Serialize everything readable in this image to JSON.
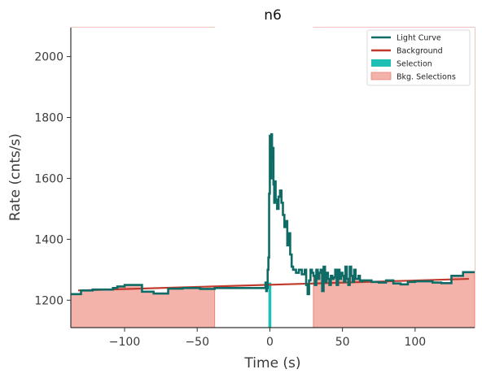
{
  "chart_data": {
    "type": "line",
    "title": "n6",
    "xlabel": "Time (s)",
    "ylabel": "Rate (cnts/s)",
    "xlim": [
      -137,
      141
    ],
    "ylim": [
      1110,
      2095
    ],
    "xticks": [
      -100,
      -50,
      0,
      50,
      100
    ],
    "xtick_labels": [
      "−100",
      "−50",
      "0",
      "50",
      "100"
    ],
    "yticks": [
      1200,
      1400,
      1600,
      1800,
      2000
    ],
    "ytick_labels": [
      "1200",
      "1400",
      "1600",
      "1800",
      "2000"
    ],
    "grid": false,
    "legend_position": "top-right",
    "colors": {
      "light_curve": "#0e6b65",
      "background": "#c0392b",
      "selection": "#1fbfb5",
      "bkg_selection_fill": "#f4b3aa",
      "bkg_selection_edge": "#e8857a",
      "axis": "#333333"
    },
    "legend": [
      {
        "label": "Light Curve",
        "kind": "line",
        "color": "#0e6b65"
      },
      {
        "label": "Background",
        "kind": "line",
        "color": "#c0392b"
      },
      {
        "label": "Selection",
        "kind": "patch",
        "color": "#1fbfb5"
      },
      {
        "label": "Bkg. Selections",
        "kind": "patch",
        "color": "#f4b3aa"
      }
    ],
    "series": [
      {
        "name": "Light Curve",
        "kind": "step",
        "x": [
          -137,
          -130,
          -122,
          -108,
          -105,
          -100,
          -88,
          -80,
          -70,
          -60,
          -48,
          -38,
          -3,
          -2.5,
          -2,
          -1.5,
          -1,
          -0.5,
          0,
          0.5,
          1,
          1.5,
          2,
          2.5,
          3,
          3.5,
          4,
          5,
          6,
          7,
          8,
          9,
          10,
          11,
          12,
          13,
          14,
          15,
          16,
          18,
          20,
          22,
          24,
          25,
          26,
          27,
          28,
          29,
          30,
          31,
          32,
          33,
          34,
          35,
          36,
          37,
          38,
          39,
          40,
          41,
          42,
          43,
          44,
          45,
          46,
          47,
          48,
          49,
          50,
          51,
          52,
          53,
          54,
          55,
          56,
          57,
          58,
          59,
          60,
          61,
          62,
          63,
          64,
          70,
          75,
          80,
          85,
          90,
          95,
          100,
          105,
          112,
          118,
          125,
          133,
          141
        ],
        "y": [
          1220,
          1232,
          1235,
          1240,
          1245,
          1250,
          1228,
          1222,
          1238,
          1240,
          1237,
          1240,
          1258,
          1230,
          1240,
          1300,
          1340,
          1550,
          1740,
          1600,
          1745,
          1660,
          1700,
          1580,
          1520,
          1590,
          1530,
          1500,
          1540,
          1560,
          1520,
          1480,
          1440,
          1460,
          1380,
          1420,
          1350,
          1310,
          1300,
          1290,
          1300,
          1285,
          1300,
          1250,
          1220,
          1265,
          1300,
          1290,
          1280,
          1250,
          1300,
          1270,
          1290,
          1300,
          1230,
          1310,
          1260,
          1290,
          1270,
          1250,
          1280,
          1270,
          1275,
          1300,
          1250,
          1300,
          1270,
          1290,
          1280,
          1260,
          1310,
          1270,
          1250,
          1310,
          1280,
          1260,
          1300,
          1270,
          1270,
          1280,
          1265,
          1262,
          1265,
          1260,
          1258,
          1265,
          1255,
          1252,
          1260,
          1262,
          1262,
          1258,
          1256,
          1280,
          1292,
          1292
        ]
      },
      {
        "name": "Background",
        "kind": "line",
        "x": [
          -132,
          137
        ],
        "y": [
          1232,
          1270
        ]
      }
    ],
    "selection": {
      "label": "Selection",
      "x": [
        -1,
        1
      ]
    },
    "bkg_selections": [
      {
        "label": "Bkg. Selections",
        "x": [
          -137,
          -38
        ]
      },
      {
        "label": "Bkg. Selections",
        "x": [
          30,
          141
        ]
      }
    ]
  }
}
